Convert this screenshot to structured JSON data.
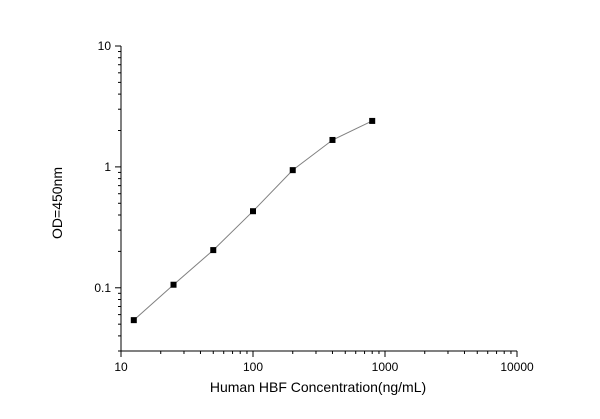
{
  "chart_data": {
    "type": "line",
    "title": "",
    "xlabel": "Human HBF Concentration(ng/mL)",
    "ylabel": "OD=450nm",
    "x_scale": "log",
    "y_scale": "log",
    "xlim": [
      10,
      10000
    ],
    "ylim": [
      0.03,
      10
    ],
    "x_ticks": [
      10,
      100,
      1000,
      10000
    ],
    "x_tick_labels": [
      "10",
      "100",
      "1000",
      "10000"
    ],
    "y_ticks": [
      0.1,
      1,
      10
    ],
    "y_tick_labels": [
      "0.1",
      "1",
      "10"
    ],
    "grid": false,
    "legend": "none",
    "series": [
      {
        "x": [
          12.5,
          25,
          50,
          100,
          200,
          400,
          800
        ],
        "y": [
          0.054,
          0.106,
          0.205,
          0.43,
          0.94,
          1.67,
          2.4
        ],
        "marker": "square",
        "line_color": "#808080",
        "marker_color": "#000000"
      }
    ]
  }
}
